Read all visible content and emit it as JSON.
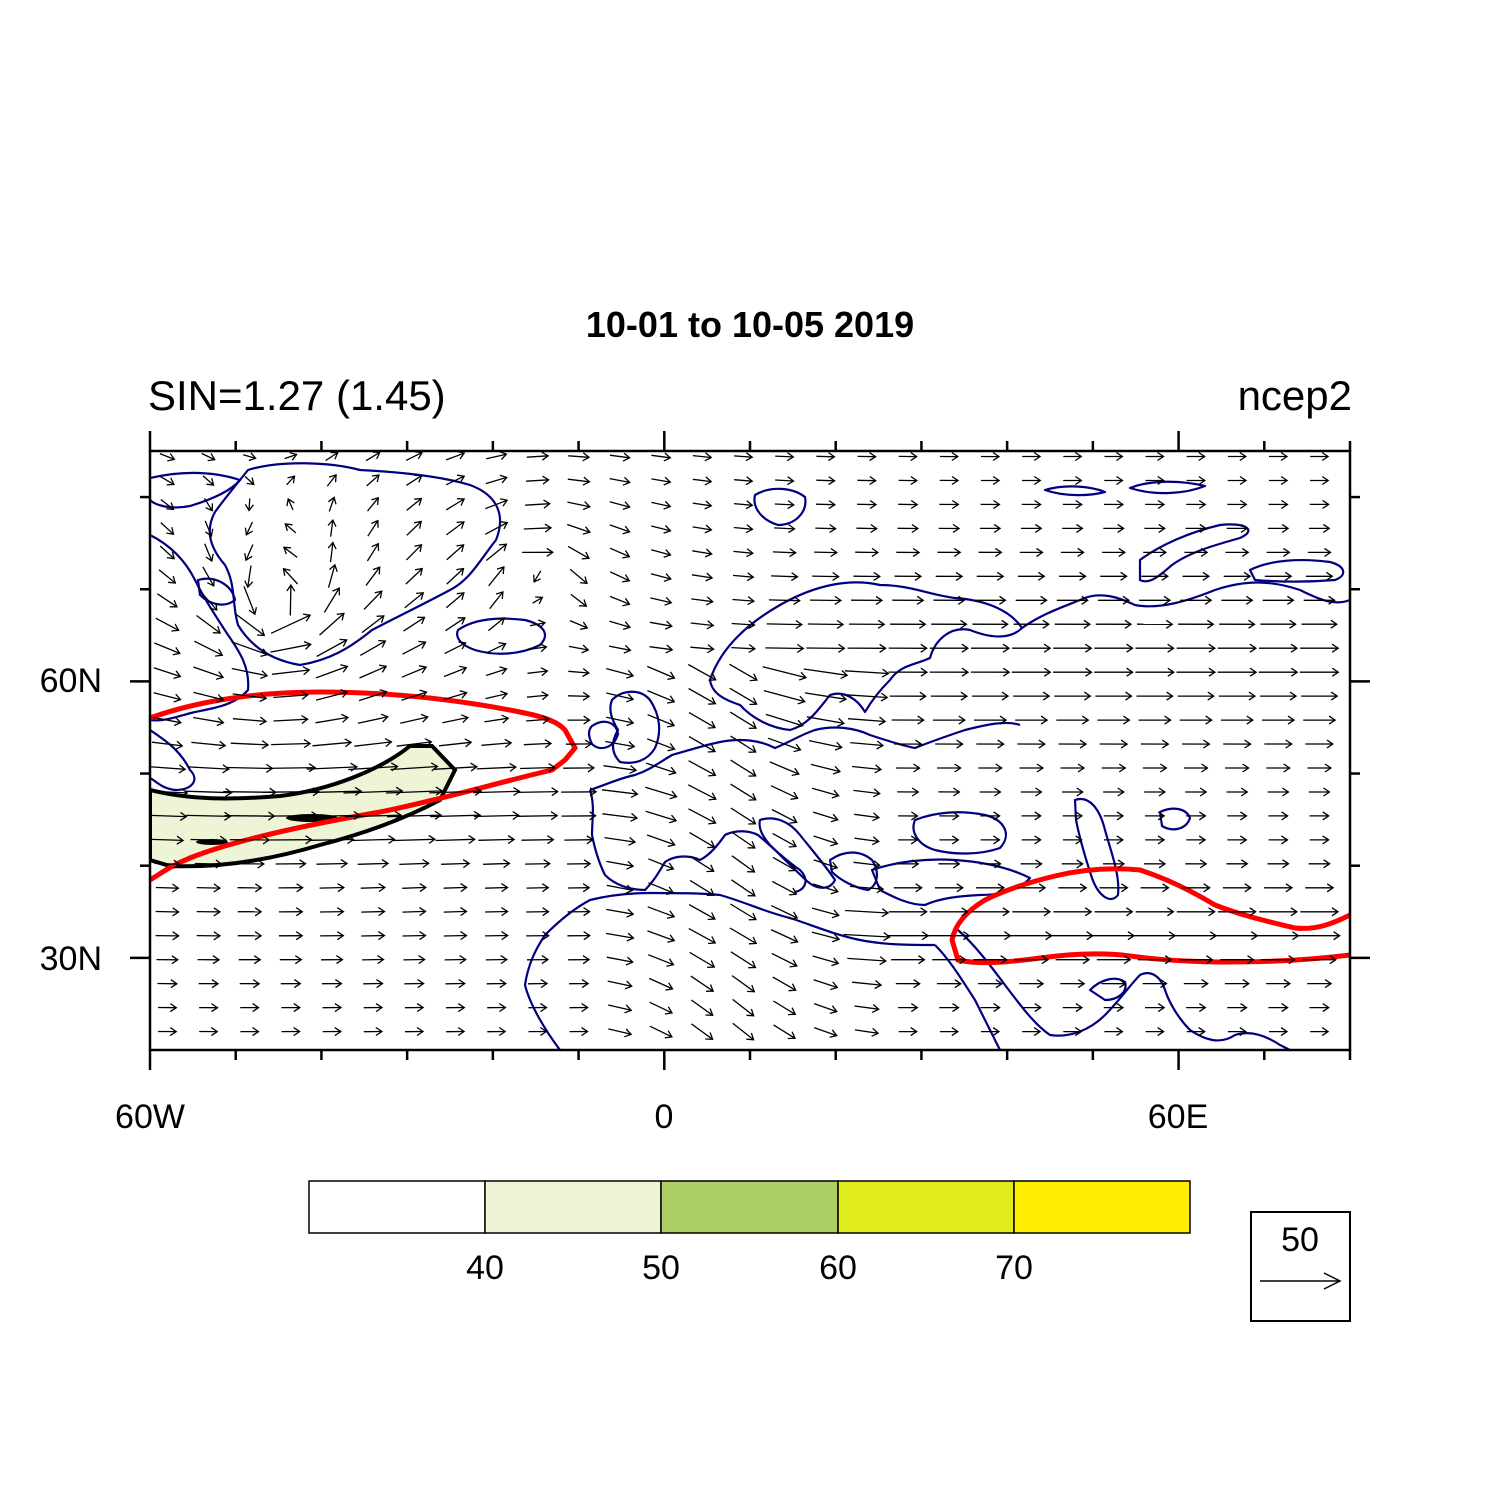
{
  "title": "10-01 to 10-05 2019",
  "left_string": "SIN=1.27 (1.45)",
  "right_string": "ncep2",
  "map": {
    "lon_range": [
      -60,
      80
    ],
    "lat_range": [
      20,
      85
    ],
    "lon_labels": [
      "60W",
      "0",
      "60E"
    ],
    "lat_labels": [
      "60N",
      "30N"
    ],
    "coastline_color": "#000080",
    "highlight_contour_color": "#ff0000"
  },
  "colorbar": {
    "levels": [
      "40",
      "50",
      "60",
      "70"
    ],
    "colors": [
      "#ffffff",
      "#eef5d6",
      "#acd065",
      "#e0ec1c",
      "#ffee00"
    ]
  },
  "vector_reference": {
    "label": "50"
  },
  "chart_data": {
    "type": "heatmap",
    "title": "10-01 to 10-05 2019",
    "left_string": "SIN=1.27 (1.45)",
    "right_string": "ncep2",
    "x_range": [
      -60,
      80
    ],
    "y_range": [
      20,
      85
    ],
    "x_ticks": [
      -60,
      0,
      60
    ],
    "x_tick_labels": [
      "60W",
      "0",
      "60E"
    ],
    "y_ticks": [
      60,
      30
    ],
    "y_tick_labels": [
      "60N",
      "30N"
    ],
    "shading_levels": [
      40,
      50,
      60,
      70
    ],
    "shaded_region_40_50": "jet core over western North Atlantic, approx. 60W-25W, 40N-54N",
    "red_contours": [
      {
        "extent": "60W-10W, 38N-59N (North Atlantic)"
      },
      {
        "extent": "33E-80E, 29N-40N (Middle East / Central Asia)"
      }
    ],
    "vector_reference_magnitude": 50
  }
}
